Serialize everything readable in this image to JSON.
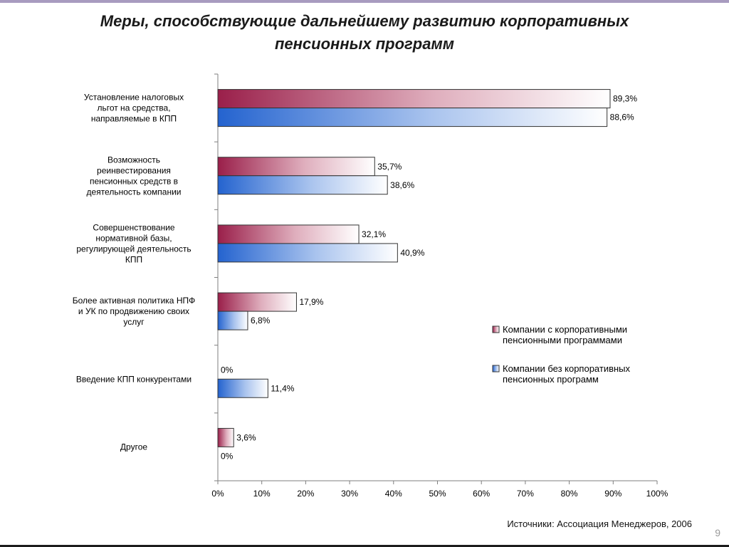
{
  "slide": {
    "title_line1": "Меры, способствующие дальнейшему развитию корпоративных",
    "title_line2": "пенсионных программ",
    "source": "Источники: Ассоциация  Менеджеров, 2006",
    "page_number": "9"
  },
  "colors": {
    "series_with": "#a3264f",
    "series_without": "#2e6fd0",
    "axis": "#7f7f7f",
    "top_bar": "#a89bbf"
  },
  "chart_data": {
    "type": "bar",
    "orientation": "horizontal",
    "categories": [
      [
        "Установление налоговых",
        "льгот на средства,",
        "направляемые в КПП"
      ],
      [
        "Возможность",
        "реинвестирования",
        "пенсионных средств в",
        "деятельность компании"
      ],
      [
        "Совершенствование",
        "нормативной базы,",
        "регулирующей деятельность",
        "КПП"
      ],
      [
        "Более активная политика НПФ",
        "и УК по продвижению своих",
        "услуг"
      ],
      [
        "Введение КПП конкурентами"
      ],
      [
        "Другое"
      ]
    ],
    "series": [
      {
        "name": "Компании с корпоративными пенсионными программами",
        "legend_lines": [
          "Компании с корпоративными",
          "пенсионными программами"
        ],
        "values": [
          89.3,
          35.7,
          32.1,
          17.9,
          0,
          3.6
        ],
        "labels": [
          "89,3%",
          "35,7%",
          "32,1%",
          "17,9%",
          "0%",
          "3,6%"
        ]
      },
      {
        "name": "Компании без корпоративных пенсионных программ",
        "legend_lines": [
          "Компании без корпоративных",
          "пенсионных программ"
        ],
        "values": [
          88.6,
          38.6,
          40.9,
          6.8,
          11.4,
          0
        ],
        "labels": [
          "88,6%",
          "38,6%",
          "40,9%",
          "6,8%",
          "11,4%",
          "0%"
        ]
      }
    ],
    "x_ticks": [
      "0%",
      "10%",
      "20%",
      "30%",
      "40%",
      "50%",
      "60%",
      "70%",
      "80%",
      "90%",
      "100%"
    ],
    "xlim": [
      0,
      100
    ],
    "grid": false,
    "legend_position": "right"
  }
}
